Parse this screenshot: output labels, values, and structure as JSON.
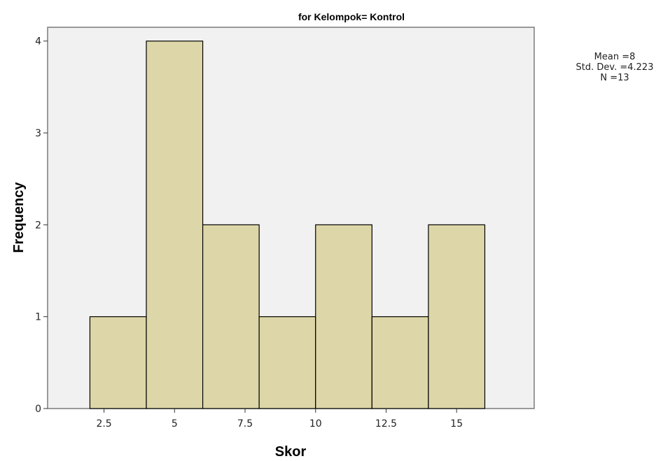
{
  "chart_data": {
    "type": "bar",
    "title": "for Kelompok= Kontrol",
    "xlabel": "Skor",
    "ylabel": "Frequency",
    "xlim": [
      0.5,
      17.75
    ],
    "ylim": [
      0,
      4.15
    ],
    "bin_edges": [
      2,
      4,
      6,
      8,
      10,
      12,
      14,
      16
    ],
    "values": [
      1,
      4,
      2,
      1,
      2,
      1,
      2
    ],
    "xticks": [
      2.5,
      5,
      7.5,
      10,
      12.5,
      15
    ],
    "xtick_labels": [
      "2.5",
      "5",
      "7.5",
      "10",
      "12.5",
      "15"
    ],
    "yticks": [
      0,
      1,
      2,
      3,
      4
    ],
    "ytick_labels": [
      "0",
      "1",
      "2",
      "3",
      "4"
    ],
    "bar_color": "#ddd6a8",
    "plot_background": "#f1f1f1",
    "grid": false,
    "legend": "none",
    "stats": {
      "mean": "Mean =8",
      "std_dev": "Std. Dev. =4.223",
      "n": "N =13"
    }
  }
}
